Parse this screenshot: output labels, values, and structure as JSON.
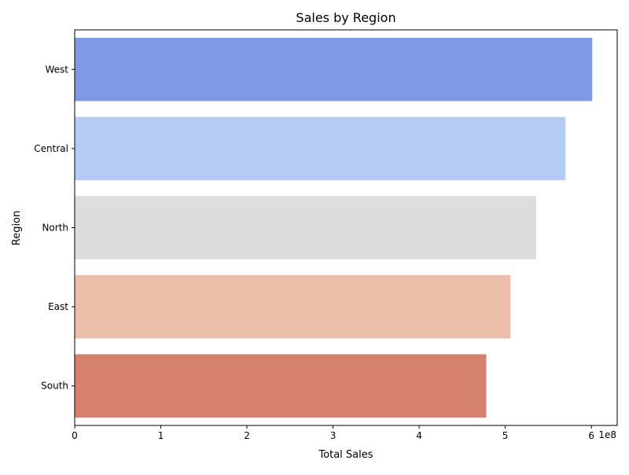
{
  "chart_data": {
    "type": "bar",
    "orientation": "horizontal",
    "title": "Sales by Region",
    "xlabel": "Total Sales",
    "ylabel": "Region",
    "x_scale_label": "1e8",
    "xlim": [
      0,
      6.3
    ],
    "x_ticks": [
      "0",
      "1",
      "2",
      "3",
      "4",
      "5",
      "6"
    ],
    "categories": [
      "West",
      "Central",
      "North",
      "East",
      "South"
    ],
    "values": [
      6.01,
      5.7,
      5.36,
      5.06,
      4.78
    ],
    "colors": [
      "#7f9ae4",
      "#b5cbf3",
      "#dddddd",
      "#ecbda8",
      "#d68170"
    ],
    "grid": false,
    "legend": false
  }
}
